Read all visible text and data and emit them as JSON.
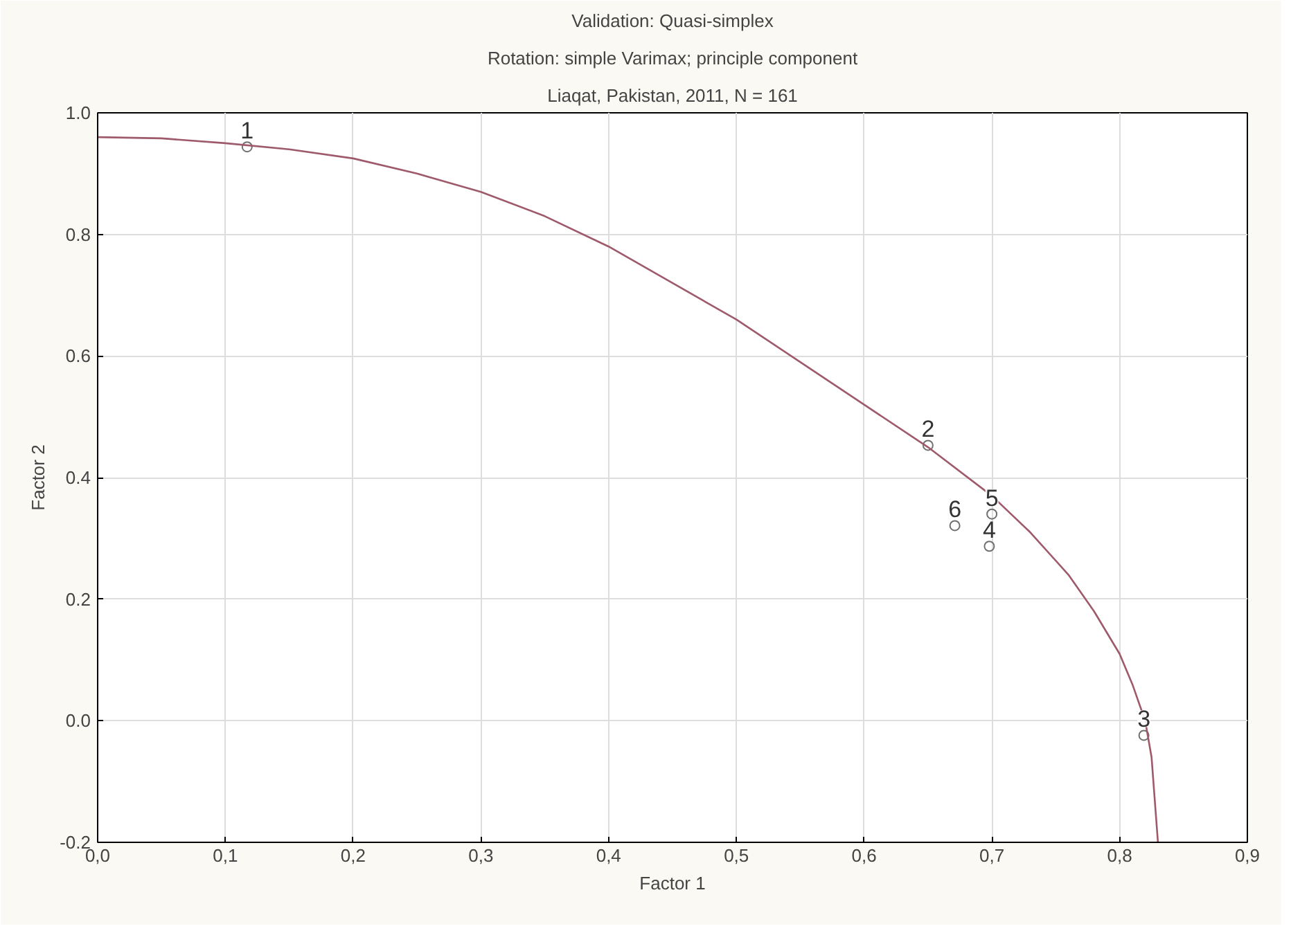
{
  "chart_data": {
    "type": "scatter",
    "title": "Validation: Quasi-simplex",
    "subtitle": "Rotation: simple Varimax; principle component",
    "xlabel": "Factor 1",
    "ylabel": "Factor 2",
    "x": [
      0.117,
      0.65,
      0.819,
      0.698,
      0.7,
      0.671
    ],
    "series": [
      {
        "color": "#707070",
        "values": [
          0.944,
          0.453,
          -0.024,
          0.287,
          0.34,
          0.321
        ],
        "marker": "circle"
      },
      {
        "type": "line",
        "color": "#9e5a6a",
        "marker": "none",
        "x": [
          0,
          0.05,
          0.1,
          0.15,
          0.2,
          0.25,
          0.3,
          0.35,
          0.4,
          0.45,
          0.5,
          0.55,
          0.6,
          0.65,
          0.7,
          0.73,
          0.76,
          0.78,
          0.8,
          0.81,
          0.82,
          0.825,
          0.83
        ],
        "values": [
          0.96,
          0.958,
          0.95,
          0.94,
          0.925,
          0.9,
          0.87,
          0.83,
          0.78,
          0.72,
          0.66,
          0.59,
          0.52,
          0.45,
          0.37,
          0.31,
          0.24,
          0.18,
          0.11,
          0.06,
          0.0,
          -0.06,
          -0.2
        ]
      }
    ],
    "annotations": [
      "Liaqat, Pakistan, 2011, N = 161",
      {
        "text": "1",
        "x": 0.117,
        "y": 0.944
      },
      {
        "text": "2",
        "x": 0.65,
        "y": 0.453
      },
      {
        "text": "3",
        "x": 0.819,
        "y": -0.024
      },
      {
        "text": "4",
        "x": 0.698,
        "y": 0.287
      },
      {
        "text": "5",
        "x": 0.7,
        "y": 0.34
      },
      {
        "text": "6",
        "x": 0.671,
        "y": 0.321
      }
    ],
    "xlim": [
      0,
      0.9
    ],
    "ylim": [
      -0.2,
      1.0
    ],
    "xticks": [
      {
        "value": 0,
        "label": "0,0"
      },
      {
        "value": 0.1,
        "label": "0,1"
      },
      {
        "value": 0.2,
        "label": "0,2"
      },
      {
        "value": 0.3,
        "label": "0,3"
      },
      {
        "value": 0.4,
        "label": "0,4"
      },
      {
        "value": 0.5,
        "label": "0,5"
      },
      {
        "value": 0.6,
        "label": "0,6"
      },
      {
        "value": 0.7,
        "label": "0,7"
      },
      {
        "value": 0.8,
        "label": "0,8"
      },
      {
        "value": 0.9,
        "label": "0,9"
      }
    ],
    "yticks": [
      {
        "value": -0.2,
        "label": "-0.2"
      },
      {
        "value": 0,
        "label": "0.0"
      },
      {
        "value": 0.2,
        "label": "0.2"
      },
      {
        "value": 0.4,
        "label": "0.4"
      },
      {
        "value": 0.6,
        "label": "0.6"
      },
      {
        "value": 0.8,
        "label": "0.8"
      },
      {
        "value": 1.0,
        "label": "1.0"
      }
    ],
    "grid": true
  }
}
